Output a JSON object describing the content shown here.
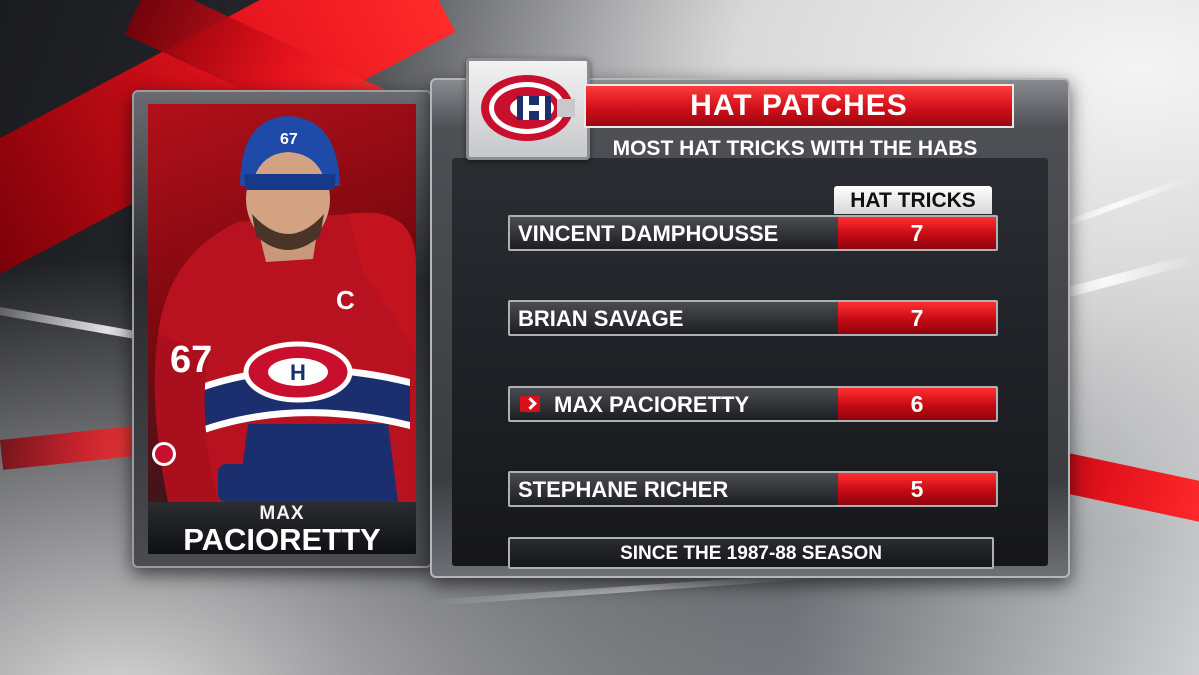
{
  "player": {
    "first_name": "MAX",
    "last_name": "PACIORETTY",
    "jersey_number": "67",
    "captain_letter": "C"
  },
  "graphic": {
    "title": "HAT PATCHES",
    "subtitle": "MOST HAT TRICKS WITH THE HABS",
    "column_header": "HAT TRICKS",
    "footer": "SINCE THE 1987-88 SEASON",
    "highlight_icon": "chevron-right-icon"
  },
  "rows": [
    {
      "name": "VINCENT DAMPHOUSSE",
      "value": "7"
    },
    {
      "name": "BRIAN SAVAGE",
      "value": "7"
    },
    {
      "name": "MAX PACIORETTY",
      "value": "6"
    },
    {
      "name": "STEPHANE RICHER",
      "value": "5"
    }
  ],
  "colors": {
    "accent_red": "#d0101a",
    "logo_blue": "#1b2f6e",
    "logo_red": "#c8102e"
  }
}
